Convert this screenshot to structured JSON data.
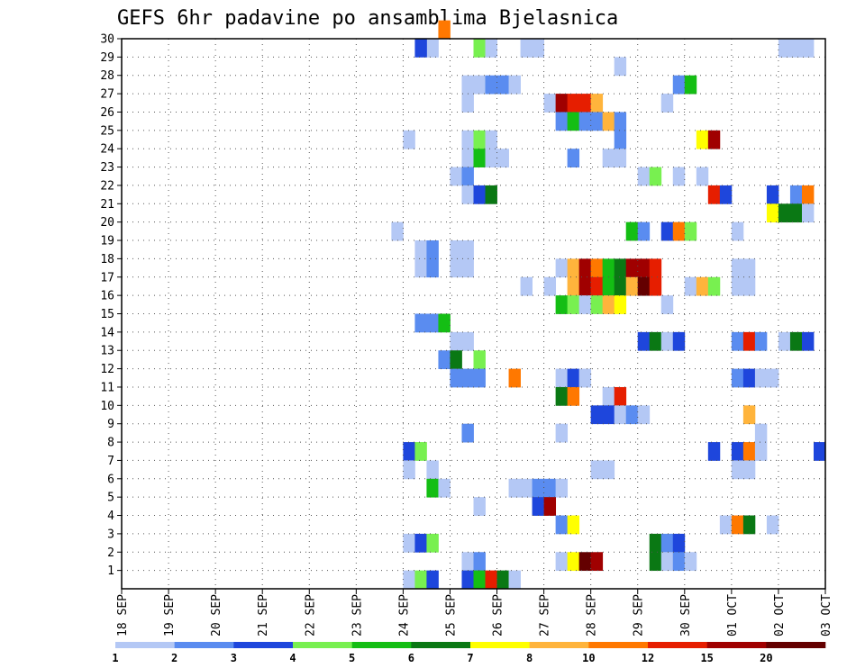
{
  "chart_data": {
    "type": "heatmap",
    "title": "GEFS 6hr padavine po ansamblima Bjelasnica",
    "x_tick_labels": [
      "18 SEP",
      "19 SEP",
      "20 SEP",
      "21 SEP",
      "22 SEP",
      "23 SEP",
      "24 SEP",
      "25 SEP",
      "26 SEP",
      "27 SEP",
      "28 SEP",
      "29 SEP",
      "30 SEP",
      "01 OCT",
      "02 OCT",
      "03 OCT"
    ],
    "y_tick_labels": [
      "1",
      "2",
      "3",
      "4",
      "5",
      "6",
      "7",
      "8",
      "9",
      "10",
      "11",
      "12",
      "13",
      "14",
      "15",
      "16",
      "17",
      "18",
      "19",
      "20",
      "21",
      "22",
      "23",
      "24",
      "25",
      "26",
      "27",
      "28",
      "29",
      "30"
    ],
    "y_range": [
      0,
      30
    ],
    "x_range_days": [
      0,
      15
    ],
    "grid": true,
    "legend": "colorbar-bottom",
    "colorbar": {
      "labels": [
        "1",
        "2",
        "3",
        "4",
        "5",
        "6",
        "7",
        "8",
        "10",
        "12",
        "15",
        "20"
      ],
      "colors": [
        "#b4c8f5",
        "#5a8cf0",
        "#1e46dc",
        "#78f050",
        "#14be14",
        "#0a7814",
        "#ffff00",
        "#ffb43c",
        "#ff7800",
        "#e61e00",
        "#a00000",
        "#640000"
      ]
    },
    "colors": [
      "#b4c8f5",
      "#5a8cf0",
      "#1e46dc",
      "#78f050",
      "#14be14",
      "#0a7814",
      "#ffff00",
      "#ffb43c",
      "#ff7800",
      "#e61e00",
      "#a00000",
      "#640000"
    ],
    "cells_format": "[time_step_6h_from_18SEP_00Z, ensemble_member, color_class_index]",
    "cells": [
      [
        27,
        30,
        8
      ],
      [
        26,
        29,
        0
      ],
      [
        25,
        29,
        2
      ],
      [
        30,
        29,
        3
      ],
      [
        31,
        29,
        0
      ],
      [
        34,
        29,
        0
      ],
      [
        35,
        29,
        0
      ],
      [
        56,
        29,
        0
      ],
      [
        57,
        29,
        0
      ],
      [
        58,
        29,
        0
      ],
      [
        42,
        28,
        0
      ],
      [
        29,
        27,
        0
      ],
      [
        30,
        27,
        0
      ],
      [
        31,
        27,
        1
      ],
      [
        32,
        27,
        1
      ],
      [
        33,
        27,
        0
      ],
      [
        47,
        27,
        1
      ],
      [
        48,
        27,
        4
      ],
      [
        29,
        26,
        0
      ],
      [
        36,
        26,
        0
      ],
      [
        37,
        26,
        10
      ],
      [
        38,
        26,
        9
      ],
      [
        39,
        26,
        9
      ],
      [
        40,
        26,
        7
      ],
      [
        46,
        26,
        0
      ],
      [
        37,
        25,
        1
      ],
      [
        38,
        25,
        4
      ],
      [
        39,
        25,
        1
      ],
      [
        40,
        25,
        1
      ],
      [
        41,
        25,
        7
      ],
      [
        42,
        25,
        1
      ],
      [
        24,
        24,
        0
      ],
      [
        29,
        24,
        0
      ],
      [
        30,
        24,
        3
      ],
      [
        31,
        24,
        0
      ],
      [
        42,
        24,
        1
      ],
      [
        49,
        24,
        6
      ],
      [
        50,
        24,
        10
      ],
      [
        29,
        23,
        0
      ],
      [
        30,
        23,
        4
      ],
      [
        31,
        23,
        0
      ],
      [
        32,
        23,
        0
      ],
      [
        38,
        23,
        1
      ],
      [
        41,
        23,
        0
      ],
      [
        42,
        23,
        0
      ],
      [
        28,
        22,
        0
      ],
      [
        29,
        22,
        1
      ],
      [
        44,
        22,
        0
      ],
      [
        45,
        22,
        3
      ],
      [
        47,
        22,
        0
      ],
      [
        49,
        22,
        0
      ],
      [
        29,
        21,
        0
      ],
      [
        30,
        21,
        2
      ],
      [
        31,
        21,
        5
      ],
      [
        50,
        21,
        9
      ],
      [
        51,
        21,
        2
      ],
      [
        55,
        21,
        2
      ],
      [
        57,
        21,
        1
      ],
      [
        58,
        21,
        8
      ],
      [
        55,
        20,
        6
      ],
      [
        56,
        20,
        5
      ],
      [
        57,
        20,
        5
      ],
      [
        58,
        20,
        0
      ],
      [
        23,
        19,
        0
      ],
      [
        43,
        19,
        4
      ],
      [
        44,
        19,
        1
      ],
      [
        46,
        19,
        2
      ],
      [
        47,
        19,
        8
      ],
      [
        48,
        19,
        3
      ],
      [
        52,
        19,
        0
      ],
      [
        25,
        18,
        0
      ],
      [
        26,
        18,
        1
      ],
      [
        28,
        18,
        0
      ],
      [
        29,
        18,
        0
      ],
      [
        25,
        17,
        0
      ],
      [
        26,
        17,
        1
      ],
      [
        28,
        17,
        0
      ],
      [
        29,
        17,
        0
      ],
      [
        37,
        17,
        0
      ],
      [
        38,
        17,
        7
      ],
      [
        39,
        17,
        10
      ],
      [
        40,
        17,
        8
      ],
      [
        41,
        17,
        4
      ],
      [
        42,
        17,
        5
      ],
      [
        43,
        17,
        10
      ],
      [
        44,
        17,
        10
      ],
      [
        45,
        17,
        9
      ],
      [
        52,
        17,
        0
      ],
      [
        53,
        17,
        0
      ],
      [
        34,
        16,
        0
      ],
      [
        36,
        16,
        0
      ],
      [
        38,
        16,
        7
      ],
      [
        39,
        16,
        10
      ],
      [
        40,
        16,
        9
      ],
      [
        41,
        16,
        4
      ],
      [
        42,
        16,
        5
      ],
      [
        43,
        16,
        7
      ],
      [
        44,
        16,
        11
      ],
      [
        45,
        16,
        9
      ],
      [
        48,
        16,
        0
      ],
      [
        49,
        16,
        7
      ],
      [
        50,
        16,
        3
      ],
      [
        52,
        16,
        0
      ],
      [
        53,
        16,
        0
      ],
      [
        37,
        15,
        4
      ],
      [
        38,
        15,
        3
      ],
      [
        39,
        15,
        0
      ],
      [
        40,
        15,
        3
      ],
      [
        41,
        15,
        7
      ],
      [
        42,
        15,
        6
      ],
      [
        46,
        15,
        0
      ],
      [
        25,
        14,
        1
      ],
      [
        26,
        14,
        1
      ],
      [
        27,
        14,
        4
      ],
      [
        28,
        13,
        0
      ],
      [
        29,
        13,
        0
      ],
      [
        44,
        13,
        2
      ],
      [
        45,
        13,
        5
      ],
      [
        46,
        13,
        0
      ],
      [
        47,
        13,
        2
      ],
      [
        52,
        13,
        1
      ],
      [
        53,
        13,
        9
      ],
      [
        54,
        13,
        1
      ],
      [
        56,
        13,
        0
      ],
      [
        57,
        13,
        5
      ],
      [
        58,
        13,
        2
      ],
      [
        27,
        12,
        1
      ],
      [
        28,
        12,
        5
      ],
      [
        30,
        12,
        3
      ],
      [
        28,
        11,
        1
      ],
      [
        29,
        11,
        1
      ],
      [
        30,
        11,
        1
      ],
      [
        33,
        11,
        8
      ],
      [
        37,
        11,
        0
      ],
      [
        38,
        11,
        2
      ],
      [
        39,
        11,
        0
      ],
      [
        52,
        11,
        1
      ],
      [
        53,
        11,
        2
      ],
      [
        54,
        11,
        0
      ],
      [
        55,
        11,
        0
      ],
      [
        37,
        10,
        5
      ],
      [
        38,
        10,
        8
      ],
      [
        41,
        10,
        0
      ],
      [
        42,
        10,
        9
      ],
      [
        40,
        9,
        2
      ],
      [
        41,
        9,
        2
      ],
      [
        42,
        9,
        0
      ],
      [
        43,
        9,
        1
      ],
      [
        44,
        9,
        0
      ],
      [
        53,
        9,
        7
      ],
      [
        29,
        8,
        1
      ],
      [
        37,
        8,
        0
      ],
      [
        54,
        8,
        0
      ],
      [
        24,
        7,
        2
      ],
      [
        25,
        7,
        3
      ],
      [
        50,
        7,
        2
      ],
      [
        52,
        7,
        2
      ],
      [
        53,
        7,
        8
      ],
      [
        54,
        7,
        0
      ],
      [
        59,
        7,
        2
      ],
      [
        24,
        6,
        0
      ],
      [
        26,
        6,
        0
      ],
      [
        40,
        6,
        0
      ],
      [
        41,
        6,
        0
      ],
      [
        52,
        6,
        0
      ],
      [
        53,
        6,
        0
      ],
      [
        26,
        5,
        4
      ],
      [
        27,
        5,
        0
      ],
      [
        33,
        5,
        0
      ],
      [
        34,
        5,
        0
      ],
      [
        35,
        5,
        1
      ],
      [
        36,
        5,
        1
      ],
      [
        37,
        5,
        0
      ],
      [
        30,
        4,
        0
      ],
      [
        35,
        4,
        2
      ],
      [
        36,
        4,
        10
      ],
      [
        37,
        3,
        1
      ],
      [
        38,
        3,
        6
      ],
      [
        51,
        3,
        0
      ],
      [
        52,
        3,
        8
      ],
      [
        53,
        3,
        5
      ],
      [
        55,
        3,
        0
      ],
      [
        24,
        2,
        0
      ],
      [
        25,
        2,
        2
      ],
      [
        26,
        2,
        3
      ],
      [
        45,
        2,
        5
      ],
      [
        46,
        2,
        1
      ],
      [
        47,
        2,
        2
      ],
      [
        29,
        1,
        0
      ],
      [
        30,
        1,
        1
      ],
      [
        37,
        1,
        0
      ],
      [
        38,
        1,
        6
      ],
      [
        39,
        1,
        11
      ],
      [
        40,
        1,
        10
      ],
      [
        45,
        1,
        5
      ],
      [
        46,
        1,
        0
      ],
      [
        47,
        1,
        1
      ],
      [
        48,
        1,
        0
      ],
      [
        24,
        0,
        0
      ],
      [
        25,
        0,
        3
      ],
      [
        26,
        0,
        2
      ],
      [
        29,
        0,
        2
      ],
      [
        30,
        0,
        4
      ],
      [
        31,
        0,
        9
      ],
      [
        32,
        0,
        5
      ],
      [
        33,
        0,
        0
      ]
    ]
  }
}
